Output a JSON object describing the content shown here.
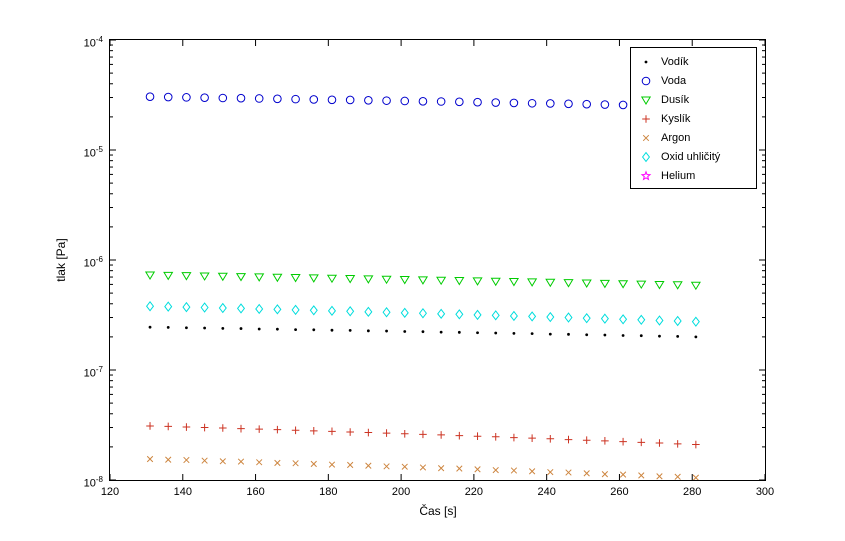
{
  "chart_data": {
    "type": "scatter",
    "title": "",
    "xlabel": "Čas [s]",
    "ylabel": "tlak [Pa]",
    "xlim": [
      120,
      300
    ],
    "y_scale": "log",
    "ylim_exp": [
      -8,
      -4
    ],
    "x_ticks": [
      120,
      140,
      160,
      180,
      200,
      220,
      240,
      260,
      280,
      300
    ],
    "y_ticks_exp": [
      -8,
      -7,
      -6,
      -5,
      -4
    ],
    "grid": false,
    "legend_position": "top-right",
    "frame_color": "#000000",
    "x": [
      131,
      136,
      141,
      146,
      151,
      156,
      161,
      166,
      171,
      176,
      181,
      186,
      191,
      196,
      201,
      206,
      211,
      216,
      221,
      226,
      231,
      236,
      241,
      246,
      251,
      256,
      261,
      266,
      271,
      276,
      281
    ],
    "series": [
      {
        "name": "Vodík",
        "marker": "dot",
        "color": "#000000",
        "values": [
          2.45e-07,
          2.44e-07,
          2.42e-07,
          2.41e-07,
          2.39e-07,
          2.38e-07,
          2.36e-07,
          2.35e-07,
          2.33e-07,
          2.32e-07,
          2.3e-07,
          2.29e-07,
          2.27e-07,
          2.26e-07,
          2.24e-07,
          2.23e-07,
          2.21e-07,
          2.2e-07,
          2.18e-07,
          2.17e-07,
          2.15e-07,
          2.14e-07,
          2.12e-07,
          2.11e-07,
          2.09e-07,
          2.08e-07,
          2.06e-07,
          2.05e-07,
          2.03e-07,
          2.02e-07,
          2e-07
        ]
      },
      {
        "name": "Voda",
        "marker": "circle",
        "color": "#0000cd",
        "values": [
          3.05e-05,
          3.03e-05,
          3.01e-05,
          2.99e-05,
          2.97e-05,
          2.96e-05,
          2.94e-05,
          2.92e-05,
          2.9e-05,
          2.88e-05,
          2.86e-05,
          2.85e-05,
          2.83e-05,
          2.81e-05,
          2.79e-05,
          2.77e-05,
          2.76e-05,
          2.74e-05,
          2.72e-05,
          2.7e-05,
          2.68e-05,
          2.66e-05,
          2.65e-05,
          2.63e-05,
          2.61e-05,
          2.59e-05,
          2.57e-05,
          2.56e-05,
          2.54e-05,
          2.52e-05,
          2.5e-05
        ]
      },
      {
        "name": "Dusík",
        "marker": "triangle-down",
        "color": "#00cc00",
        "values": [
          7.3e-07,
          7.25e-07,
          7.21e-07,
          7.16e-07,
          7.11e-07,
          7.07e-07,
          7.02e-07,
          6.97e-07,
          6.93e-07,
          6.88e-07,
          6.83e-07,
          6.79e-07,
          6.74e-07,
          6.69e-07,
          6.65e-07,
          6.6e-07,
          6.55e-07,
          6.51e-07,
          6.46e-07,
          6.41e-07,
          6.37e-07,
          6.32e-07,
          6.27e-07,
          6.23e-07,
          6.18e-07,
          6.13e-07,
          6.09e-07,
          6.04e-07,
          5.99e-07,
          5.95e-07,
          5.9e-07
        ]
      },
      {
        "name": "Kyslík",
        "marker": "plus",
        "color": "#cc3322",
        "values": [
          3.1e-08,
          3.07e-08,
          3.03e-08,
          3e-08,
          2.97e-08,
          2.93e-08,
          2.9e-08,
          2.87e-08,
          2.83e-08,
          2.8e-08,
          2.77e-08,
          2.73e-08,
          2.7e-08,
          2.67e-08,
          2.63e-08,
          2.6e-08,
          2.57e-08,
          2.53e-08,
          2.5e-08,
          2.47e-08,
          2.43e-08,
          2.4e-08,
          2.37e-08,
          2.33e-08,
          2.3e-08,
          2.27e-08,
          2.23e-08,
          2.2e-08,
          2.17e-08,
          2.13e-08,
          2.1e-08
        ]
      },
      {
        "name": "Argon",
        "marker": "x",
        "color": "#cd853f",
        "values": [
          1.55e-08,
          1.53e-08,
          1.52e-08,
          1.5e-08,
          1.48e-08,
          1.47e-08,
          1.45e-08,
          1.43e-08,
          1.42e-08,
          1.4e-08,
          1.38e-08,
          1.37e-08,
          1.35e-08,
          1.33e-08,
          1.32e-08,
          1.3e-08,
          1.28e-08,
          1.27e-08,
          1.25e-08,
          1.23e-08,
          1.22e-08,
          1.2e-08,
          1.18e-08,
          1.17e-08,
          1.15e-08,
          1.13e-08,
          1.12e-08,
          1.1e-08,
          1.08e-08,
          1.07e-08,
          1.05e-08
        ]
      },
      {
        "name": "Oxid uhličitý",
        "marker": "diamond",
        "color": "#00dddd",
        "values": [
          3.8e-07,
          3.77e-07,
          3.73e-07,
          3.7e-07,
          3.66e-07,
          3.63e-07,
          3.59e-07,
          3.56e-07,
          3.52e-07,
          3.49e-07,
          3.45e-07,
          3.42e-07,
          3.38e-07,
          3.35e-07,
          3.31e-07,
          3.28e-07,
          3.24e-07,
          3.21e-07,
          3.17e-07,
          3.14e-07,
          3.1e-07,
          3.07e-07,
          3.03e-07,
          3e-07,
          2.96e-07,
          2.93e-07,
          2.89e-07,
          2.86e-07,
          2.82e-07,
          2.79e-07,
          2.75e-07
        ]
      },
      {
        "name": "Helium",
        "marker": "pentagram",
        "color": "#ff00ff",
        "values": []
      }
    ]
  }
}
